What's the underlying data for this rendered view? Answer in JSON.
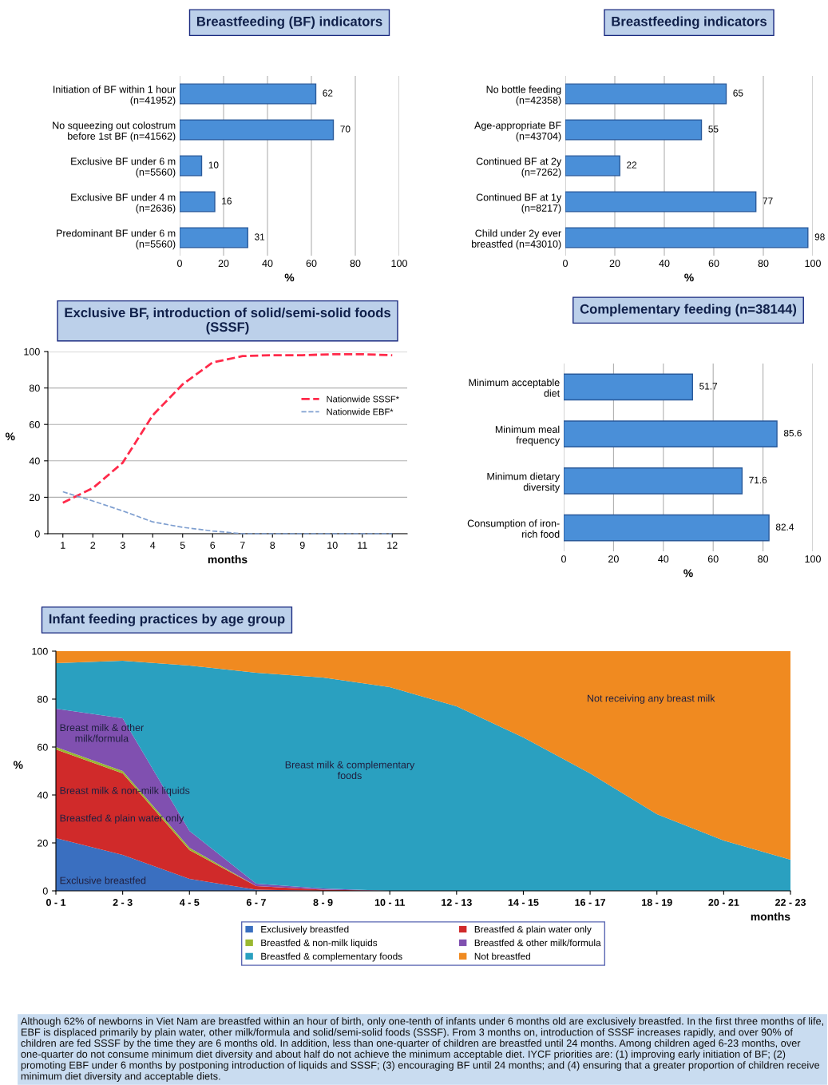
{
  "chart_data": [
    {
      "type": "bar",
      "orientation": "horizontal",
      "title": "Breastfeeding (BF) indicators",
      "xlabel": "%",
      "categories": [
        "Initiation of BF within 1 hour\n(n=41952)",
        "No squeezing out colostrum\nbefore 1st BF (n=41562)",
        "Exclusive BF under 6 m\n(n=5560)",
        "Exclusive BF under 4 m\n(n=2636)",
        "Predominant BF under 6 m\n(n=5560)"
      ],
      "values": [
        62,
        70,
        10,
        16,
        31
      ],
      "color": "#4a8fd8",
      "xlim": [
        0,
        100
      ],
      "xticks": [
        0,
        20,
        40,
        60,
        80,
        100
      ],
      "grid": "x",
      "data_labels": true
    },
    {
      "type": "bar",
      "orientation": "horizontal",
      "title": "Breastfeeding indicators",
      "xlabel": "%",
      "categories": [
        "No bottle feeding\n(n=42358)",
        "Age-appropriate BF\n(n=43704)",
        "Continued BF at 2y\n(n=7262)",
        "Continued BF at 1y\n(n=8217)",
        "Child under 2y ever\nbreastfed (n=43010)"
      ],
      "values": [
        65,
        55,
        22,
        77,
        98
      ],
      "color": "#4a8fd8",
      "xlim": [
        0,
        100
      ],
      "xticks": [
        0,
        20,
        40,
        60,
        80,
        100
      ],
      "grid": "x",
      "data_labels": true
    },
    {
      "type": "line",
      "title": "Exclusive BF, introduction of solid/semi-solid foods\n(SSSF)",
      "xlabel": "months",
      "ylabel": "%",
      "x": [
        1,
        2,
        3,
        4,
        5,
        6,
        7,
        8,
        9,
        10,
        11,
        12
      ],
      "series": [
        {
          "name": "Nationwide SSSF*",
          "color": "#ff2a4a",
          "values": [
            17,
            25,
            39,
            65,
            82,
            94,
            97.5,
            98,
            98,
            98.5,
            98.5,
            98
          ]
        },
        {
          "name": "Nationwide EBF*",
          "color": "#7f9fd0",
          "values": [
            23,
            18,
            12.5,
            6.5,
            3.5,
            1.5,
            0,
            0,
            0,
            0,
            0,
            0
          ]
        }
      ],
      "xlim": [
        0.5,
        12.5
      ],
      "xticks": [
        1,
        2,
        3,
        4,
        5,
        6,
        7,
        8,
        9,
        10,
        11,
        12
      ],
      "ylim": [
        0,
        100
      ],
      "yticks": [
        0,
        20,
        40,
        60,
        80,
        100
      ],
      "grid": "y",
      "legend": "right",
      "line_style": "dashed",
      "marker": "none"
    },
    {
      "type": "bar",
      "orientation": "horizontal",
      "title": "Complementary feeding (n=38144)",
      "xlabel": "%",
      "categories": [
        "Minimum acceptable\ndiet",
        "Minimum meal\nfrequency",
        "Minimum dietary\ndiversity",
        "Consumption of iron-\nrich food"
      ],
      "values": [
        51.7,
        85.6,
        71.6,
        82.4
      ],
      "color": "#4a8fd8",
      "xlim": [
        0,
        100
      ],
      "xticks": [
        0,
        20,
        40,
        60,
        80,
        100
      ],
      "grid": "x",
      "data_labels": true
    },
    {
      "type": "area",
      "stacked": true,
      "title": "Infant feeding practices by age group",
      "xlabel": "months",
      "ylabel": "%",
      "categories": [
        "0 - 1",
        "2 - 3",
        "4 - 5",
        "6 - 7",
        "8 - 9",
        "10 - 11",
        "12 - 13",
        "14 - 15",
        "16 - 17",
        "18 - 19",
        "20 - 21",
        "22 - 23"
      ],
      "ylim": [
        0,
        100
      ],
      "yticks": [
        0,
        20,
        40,
        60,
        80,
        100
      ],
      "legend": "bottom",
      "series": [
        {
          "name": "Exclusively breastfed",
          "color": "#3a6fc0",
          "values": [
            22,
            15,
            5,
            0.5,
            0,
            0,
            0,
            0,
            0,
            0,
            0,
            0
          ]
        },
        {
          "name": "Breastfed & plain water only",
          "color": "#d02a2a",
          "values": [
            37,
            34,
            12,
            1.5,
            0.5,
            0,
            0,
            0,
            0,
            0,
            0,
            0
          ]
        },
        {
          "name": "Breastfed & non-milk liquids",
          "color": "#9ab830",
          "values": [
            1,
            1,
            1,
            0,
            0,
            0,
            0,
            0,
            0,
            0,
            0,
            0
          ]
        },
        {
          "name": "Breastfed & other milk/formula",
          "color": "#8050b0",
          "values": [
            16,
            22,
            7,
            1,
            0.5,
            0,
            0,
            0,
            0,
            0,
            0,
            0
          ]
        },
        {
          "name": "Breastfed & complementary foods",
          "color": "#2aa0c0",
          "values": [
            19,
            24,
            69,
            88,
            88,
            85,
            77,
            64,
            49,
            32,
            21,
            13
          ]
        },
        {
          "name": "Not breastfed",
          "color": "#f08a20",
          "values": [
            5,
            4,
            6,
            9,
            11,
            15,
            23,
            36,
            51,
            68,
            79,
            87
          ]
        }
      ],
      "annotations": [
        "Not receiving any breast milk",
        "Breast milk & complementary\nfoods",
        "Breast milk & other\nmilk/formula",
        "Breast milk & non-milk liquids",
        "Breastfed & plain water only",
        "Exclusive breastfed",
        "Although 62% of newborns in Viet Nam are breastfed within an hour of birth, only one-tenth of infants under 6 months old are exclusively breastfed. In the first three months of life, EBF is displaced primarily by plain water, other milk/formula and solid/semi-solid foods (SSSF). From 3 months on, introduction of SSSF increases rapidly, and over 90% of children are fed SSSF by the time they are 6 months old. In addition, less than one-quarter of children are breastfed until 24 months. Among children aged 6-23 months, over one-quarter do not consume minimum diet diversity and about half do not achieve the minimum acceptable diet. IYCF priorities are: (1) improving early initiation of BF; (2) promoting EBF under 6 months by postponing introduction of liquids and SSSF; (3) encouraging BF until 24 months; and (4) ensuring that a greater proportion of children receive minimum diet diversity and acceptable diets."
      ]
    }
  ]
}
